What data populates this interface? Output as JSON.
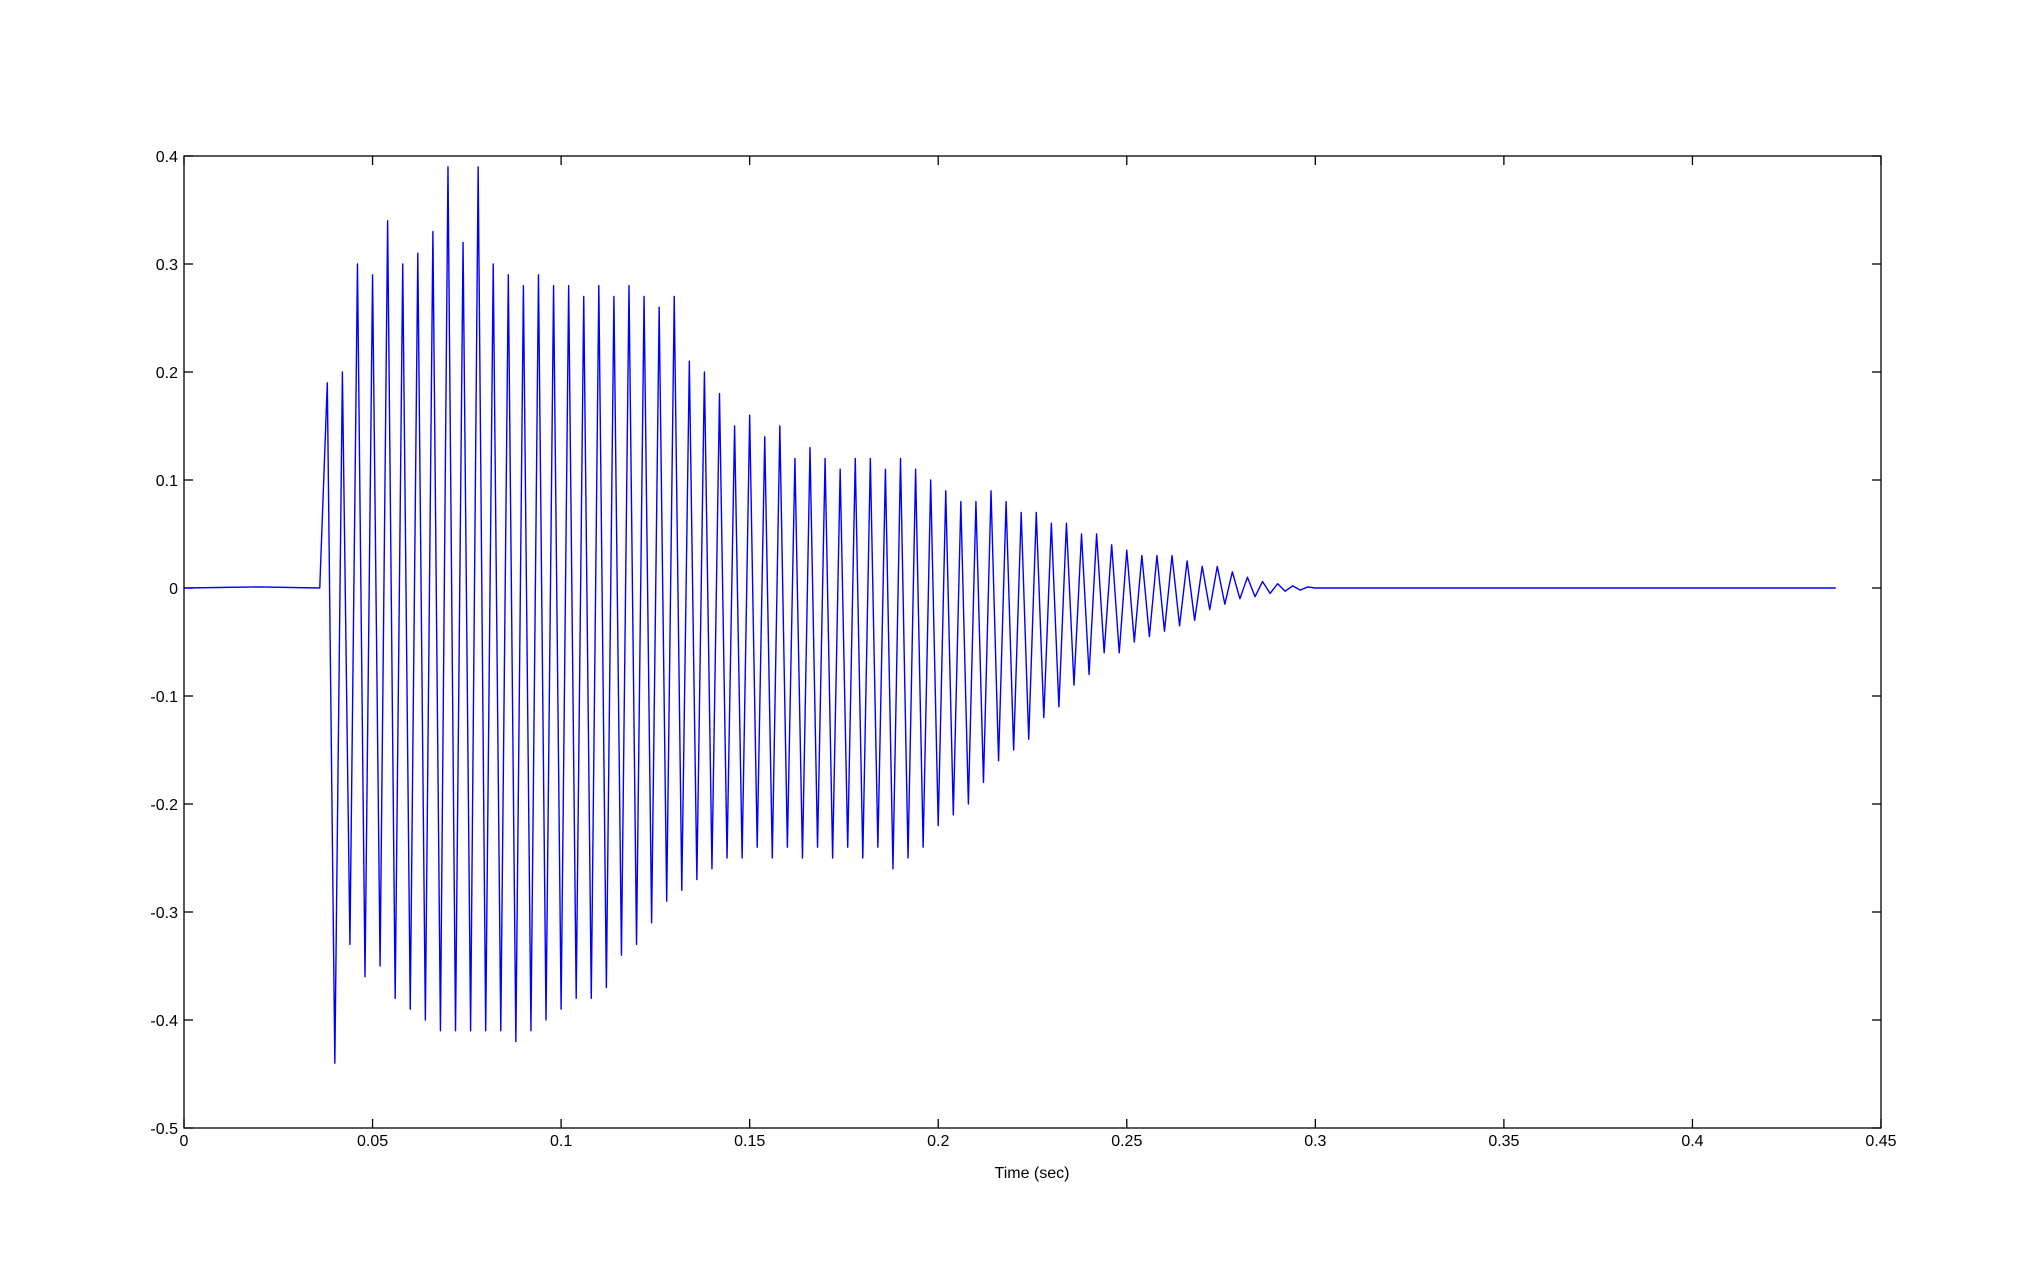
{
  "chart_data": {
    "type": "line",
    "xlabel": "Time (sec)",
    "xlim": [
      0,
      0.45
    ],
    "xticks": [
      0,
      0.05,
      0.1,
      0.15,
      0.2,
      0.25,
      0.3,
      0.35,
      0.4,
      0.45
    ],
    "ylim": [
      -0.5,
      0.4
    ],
    "yticks": [
      -0.5,
      -0.4,
      -0.3,
      -0.2,
      -0.1,
      0,
      0.1,
      0.2,
      0.3,
      0.4
    ],
    "grid": false,
    "x": [
      0,
      0.02,
      0.036,
      0.038,
      0.04,
      0.042,
      0.044,
      0.046,
      0.048,
      0.05,
      0.052,
      0.054,
      0.056,
      0.058,
      0.06,
      0.062,
      0.064,
      0.066,
      0.068,
      0.07,
      0.072,
      0.074,
      0.076,
      0.078,
      0.08,
      0.082,
      0.084,
      0.086,
      0.088,
      0.09,
      0.092,
      0.094,
      0.096,
      0.098,
      0.1,
      0.102,
      0.104,
      0.106,
      0.108,
      0.11,
      0.112,
      0.114,
      0.116,
      0.118,
      0.12,
      0.122,
      0.124,
      0.126,
      0.128,
      0.13,
      0.132,
      0.134,
      0.136,
      0.138,
      0.14,
      0.142,
      0.144,
      0.146,
      0.148,
      0.15,
      0.152,
      0.154,
      0.156,
      0.158,
      0.16,
      0.162,
      0.164,
      0.166,
      0.168,
      0.17,
      0.172,
      0.174,
      0.176,
      0.178,
      0.18,
      0.182,
      0.184,
      0.186,
      0.188,
      0.19,
      0.192,
      0.194,
      0.196,
      0.198,
      0.2,
      0.202,
      0.204,
      0.206,
      0.208,
      0.21,
      0.212,
      0.214,
      0.216,
      0.218,
      0.22,
      0.222,
      0.224,
      0.226,
      0.228,
      0.23,
      0.232,
      0.234,
      0.236,
      0.238,
      0.24,
      0.242,
      0.244,
      0.246,
      0.248,
      0.25,
      0.252,
      0.254,
      0.256,
      0.258,
      0.26,
      0.262,
      0.264,
      0.266,
      0.268,
      0.27,
      0.272,
      0.274,
      0.276,
      0.278,
      0.28,
      0.282,
      0.284,
      0.286,
      0.288,
      0.29,
      0.292,
      0.294,
      0.296,
      0.298,
      0.3,
      0.32,
      0.36,
      0.438
    ],
    "series": [
      {
        "color": "#0000ff",
        "values": [
          0,
          0.001,
          0,
          0.19,
          -0.44,
          0.2,
          -0.33,
          0.3,
          -0.36,
          0.29,
          -0.35,
          0.34,
          -0.38,
          0.3,
          -0.39,
          0.31,
          -0.4,
          0.33,
          -0.41,
          0.39,
          -0.41,
          0.32,
          -0.41,
          0.39,
          -0.41,
          0.3,
          -0.41,
          0.29,
          -0.42,
          0.28,
          -0.41,
          0.29,
          -0.4,
          0.28,
          -0.39,
          0.28,
          -0.38,
          0.27,
          -0.38,
          0.28,
          -0.37,
          0.27,
          -0.34,
          0.28,
          -0.33,
          0.27,
          -0.31,
          0.26,
          -0.29,
          0.27,
          -0.28,
          0.21,
          -0.27,
          0.2,
          -0.26,
          0.18,
          -0.25,
          0.15,
          -0.25,
          0.16,
          -0.24,
          0.14,
          -0.25,
          0.15,
          -0.24,
          0.12,
          -0.25,
          0.13,
          -0.24,
          0.12,
          -0.25,
          0.11,
          -0.24,
          0.12,
          -0.25,
          0.12,
          -0.24,
          0.11,
          -0.26,
          0.12,
          -0.25,
          0.11,
          -0.24,
          0.1,
          -0.22,
          0.09,
          -0.21,
          0.08,
          -0.2,
          0.08,
          -0.18,
          0.09,
          -0.16,
          0.08,
          -0.15,
          0.07,
          -0.14,
          0.07,
          -0.12,
          0.06,
          -0.11,
          0.06,
          -0.09,
          0.05,
          -0.08,
          0.05,
          -0.06,
          0.04,
          -0.06,
          0.035,
          -0.05,
          0.03,
          -0.045,
          0.03,
          -0.04,
          0.03,
          -0.035,
          0.025,
          -0.03,
          0.02,
          -0.02,
          0.02,
          -0.015,
          0.015,
          -0.01,
          0.01,
          -0.008,
          0.006,
          -0.005,
          0.004,
          -0.003,
          0.002,
          -0.002,
          0.001,
          0,
          0,
          0,
          0
        ]
      }
    ]
  }
}
